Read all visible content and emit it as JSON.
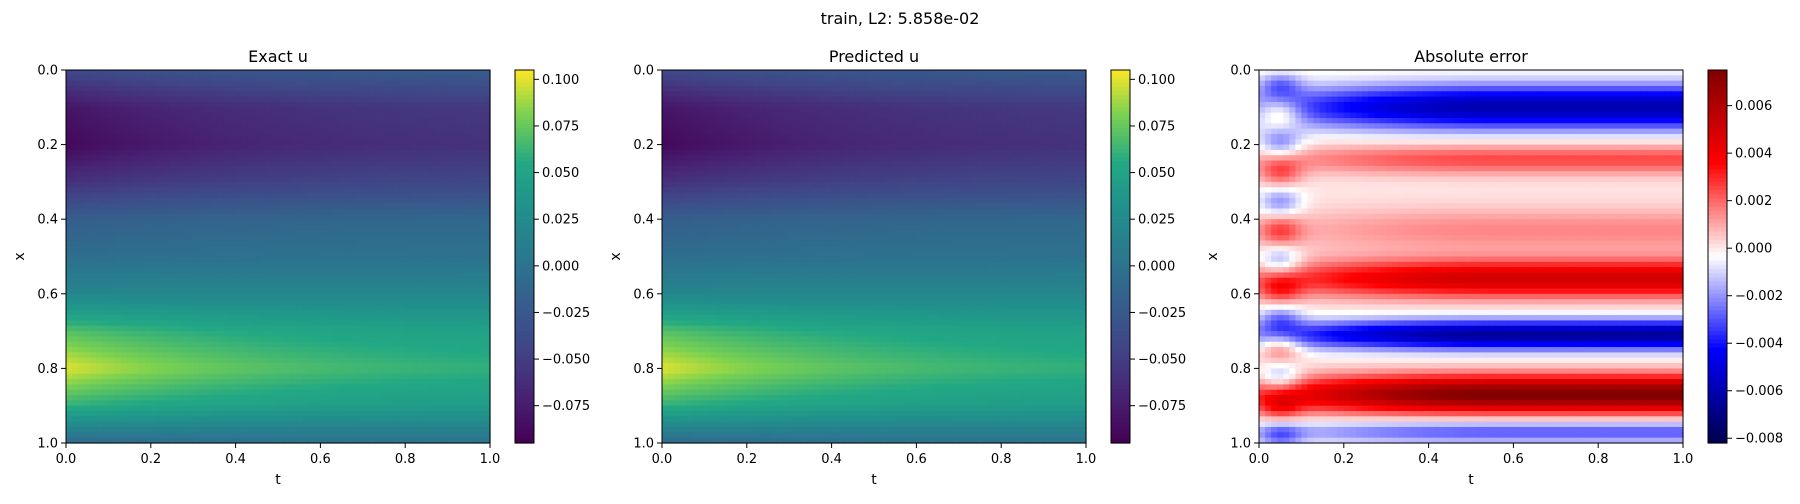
{
  "figure": {
    "suptitle": "train, L2: 5.858e-02"
  },
  "chart_data": [
    {
      "type": "heatmap",
      "title": "Exact u",
      "xlabel": "t",
      "ylabel": "x",
      "xlim": [
        0.0,
        1.0
      ],
      "ylim": [
        1.0,
        0.0
      ],
      "xticks": [
        "0.0",
        "0.2",
        "0.4",
        "0.6",
        "0.8",
        "1.0"
      ],
      "yticks": [
        "0.0",
        "0.2",
        "0.4",
        "0.6",
        "0.8",
        "1.0"
      ],
      "colormap": "viridis",
      "clim": [
        -0.095,
        0.105
      ],
      "colorbar_ticks": [
        "0.100",
        "0.075",
        "0.050",
        "0.025",
        "0.000",
        "−0.025",
        "−0.050",
        "−0.075"
      ],
      "colorbar_tick_values": [
        0.1,
        0.075,
        0.05,
        0.025,
        0.0,
        -0.025,
        -0.05,
        -0.075
      ],
      "profile_x": [
        0.0,
        0.1,
        0.2,
        0.3,
        0.4,
        0.5,
        0.6,
        0.7,
        0.8,
        0.9,
        1.0
      ],
      "u_at_t0": [
        -0.04,
        -0.08,
        -0.09,
        -0.06,
        -0.02,
        -0.005,
        0.02,
        0.07,
        0.1,
        0.06,
        -0.01
      ],
      "u_at_t1": [
        -0.02,
        -0.05,
        -0.055,
        -0.04,
        -0.01,
        0.0,
        0.02,
        0.045,
        0.055,
        0.04,
        0.0
      ]
    },
    {
      "type": "heatmap",
      "title": "Predicted u",
      "xlabel": "t",
      "ylabel": "x",
      "xlim": [
        0.0,
        1.0
      ],
      "ylim": [
        1.0,
        0.0
      ],
      "xticks": [
        "0.0",
        "0.2",
        "0.4",
        "0.6",
        "0.8",
        "1.0"
      ],
      "yticks": [
        "0.0",
        "0.2",
        "0.4",
        "0.6",
        "0.8",
        "1.0"
      ],
      "colormap": "viridis",
      "clim": [
        -0.095,
        0.105
      ],
      "colorbar_ticks": [
        "0.100",
        "0.075",
        "0.050",
        "0.025",
        "0.000",
        "−0.025",
        "−0.050",
        "−0.075"
      ],
      "colorbar_tick_values": [
        0.1,
        0.075,
        0.05,
        0.025,
        0.0,
        -0.025,
        -0.05,
        -0.075
      ],
      "profile_x": [
        0.0,
        0.1,
        0.2,
        0.3,
        0.4,
        0.5,
        0.6,
        0.7,
        0.8,
        0.9,
        1.0
      ],
      "u_at_t0": [
        -0.04,
        -0.08,
        -0.09,
        -0.06,
        -0.02,
        -0.005,
        0.02,
        0.07,
        0.1,
        0.06,
        -0.01
      ],
      "u_at_t1": [
        -0.02,
        -0.05,
        -0.055,
        -0.04,
        -0.01,
        0.0,
        0.02,
        0.045,
        0.055,
        0.04,
        0.0
      ]
    },
    {
      "type": "heatmap",
      "title": "Absolute error",
      "xlabel": "t",
      "ylabel": "x",
      "xlim": [
        0.0,
        1.0
      ],
      "ylim": [
        1.0,
        0.0
      ],
      "xticks": [
        "0.0",
        "0.2",
        "0.4",
        "0.6",
        "0.8",
        "1.0"
      ],
      "yticks": [
        "0.0",
        "0.2",
        "0.4",
        "0.6",
        "0.8",
        "1.0"
      ],
      "colormap": "seismic",
      "clim": [
        -0.0082,
        0.0075
      ],
      "colorbar_ticks": [
        "0.006",
        "0.004",
        "0.002",
        "0.000",
        "−0.002",
        "−0.004",
        "−0.006",
        "−0.008"
      ],
      "colorbar_tick_values": [
        0.006,
        0.004,
        0.002,
        0.0,
        -0.002,
        -0.004,
        -0.006,
        -0.008
      ],
      "error_bands": [
        {
          "x_center": 0.1,
          "x_width": 0.06,
          "value": -0.006
        },
        {
          "x_center": 0.24,
          "x_width": 0.04,
          "value": 0.0025
        },
        {
          "x_center": 0.43,
          "x_width": 0.06,
          "value": 0.0015
        },
        {
          "x_center": 0.56,
          "x_width": 0.05,
          "value": 0.005
        },
        {
          "x_center": 0.71,
          "x_width": 0.04,
          "value": -0.0065
        },
        {
          "x_center": 0.87,
          "x_width": 0.05,
          "value": 0.0075
        },
        {
          "x_center": 0.97,
          "x_width": 0.03,
          "value": -0.003
        }
      ]
    }
  ]
}
